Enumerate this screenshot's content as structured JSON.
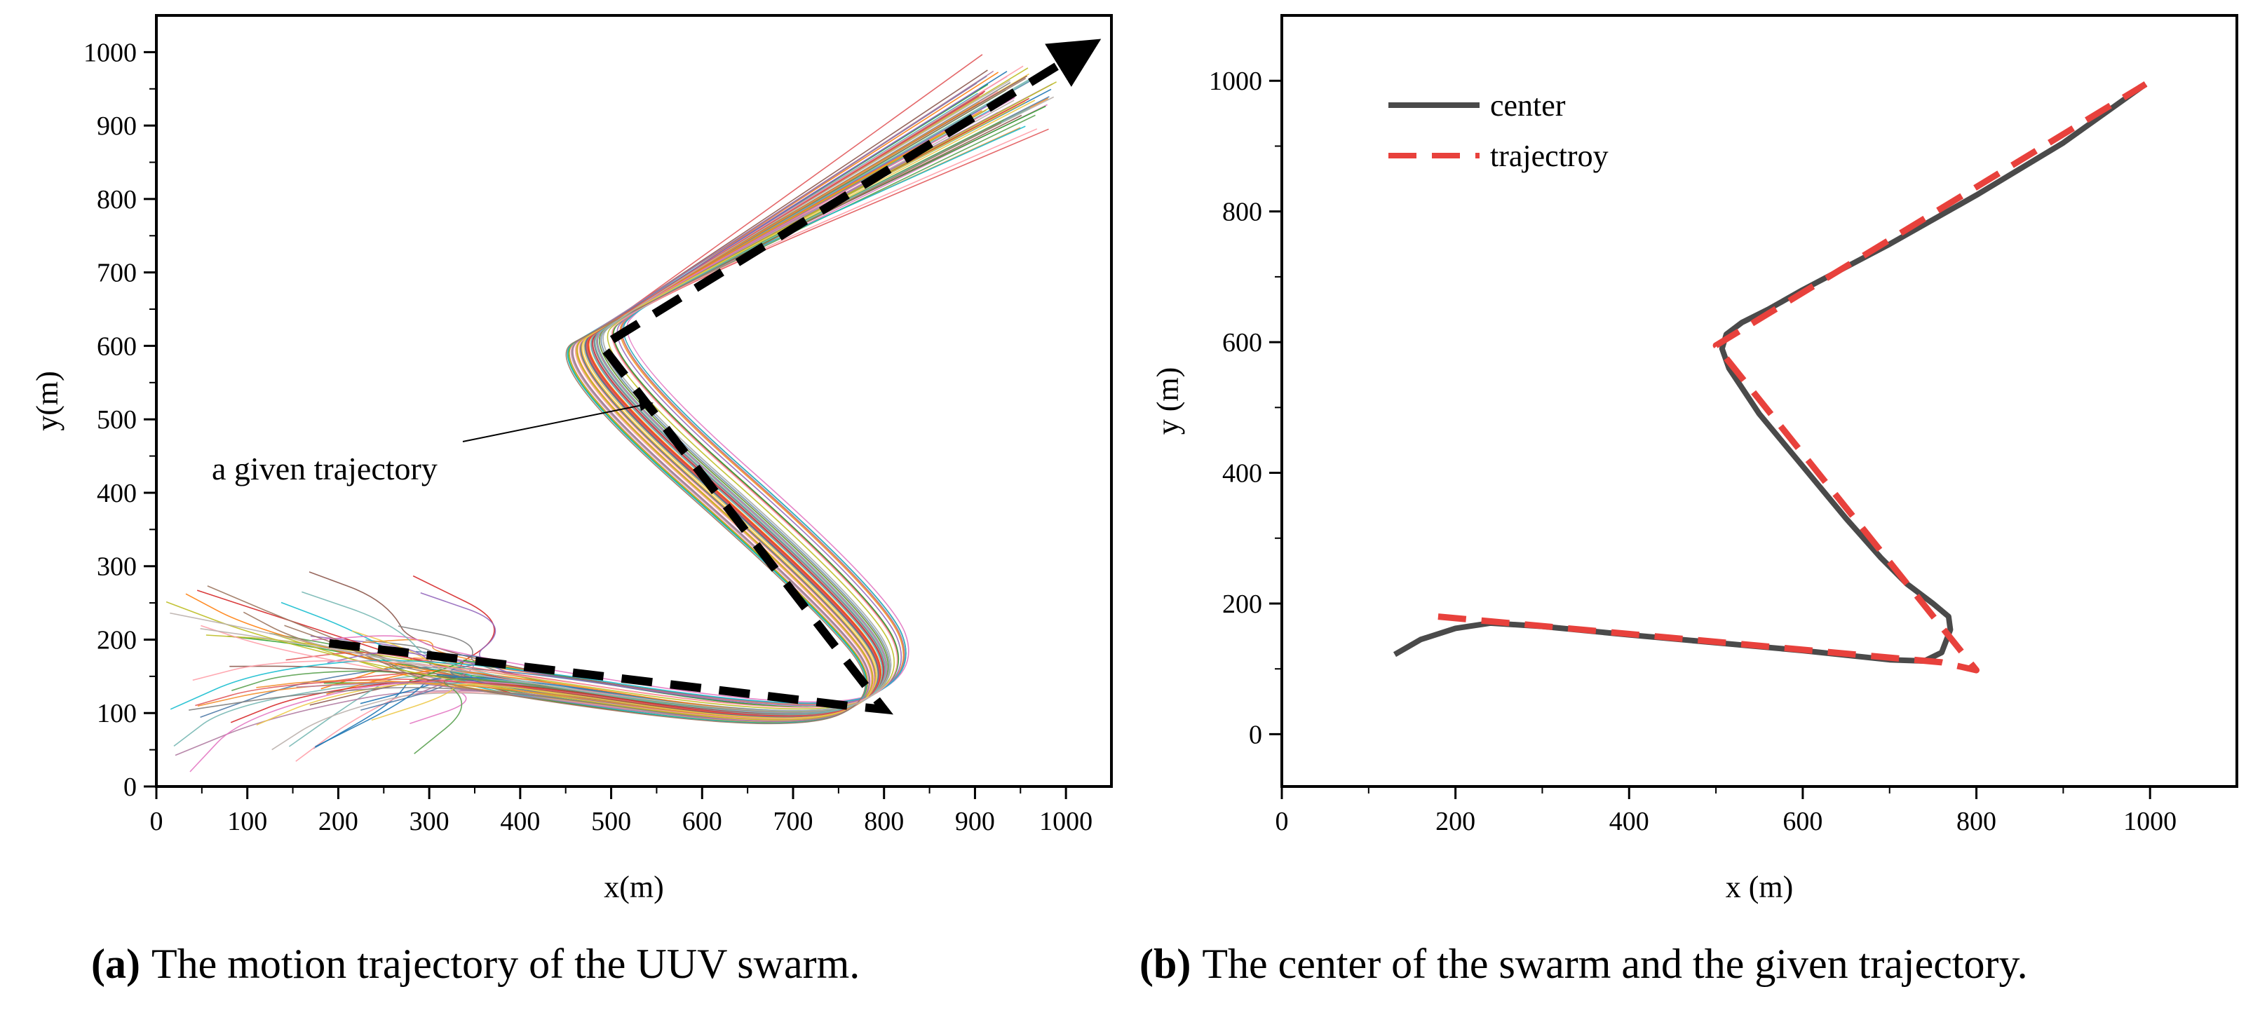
{
  "chart_data": [
    {
      "id": "a",
      "type": "line",
      "xlabel": "x(m)",
      "ylabel": "y(m)",
      "xlim": [
        0,
        1050
      ],
      "ylim": [
        0,
        1050
      ],
      "xticks": [
        0,
        100,
        200,
        300,
        400,
        500,
        600,
        700,
        800,
        900,
        1000
      ],
      "yticks": [
        0,
        100,
        200,
        300,
        400,
        500,
        600,
        700,
        800,
        900,
        1000
      ],
      "annotation": "a given trajectory",
      "given_trajectory": {
        "name": "a given trajectory",
        "x": [
          190,
          760,
          800,
          490,
          1015
        ],
        "y": [
          195,
          110,
          105,
          600,
          1000
        ]
      },
      "swarm_member_count": 60,
      "swarm_start_region": {
        "x": [
          10,
          300
        ],
        "y": [
          20,
          295
        ]
      },
      "swarm_end_region": {
        "x": [
          900,
          990
        ],
        "y": [
          910,
          1000
        ]
      }
    },
    {
      "id": "b",
      "type": "line",
      "xlabel": "x (m)",
      "ylabel": "y (m)",
      "xlim": [
        0,
        1100
      ],
      "ylim": [
        -80,
        1100
      ],
      "xticks": [
        0,
        200,
        400,
        600,
        800,
        1000
      ],
      "yticks": [
        0,
        200,
        400,
        600,
        800,
        1000
      ],
      "legend_position": "top-left",
      "series": [
        {
          "name": "center",
          "color": "#4a4a4a",
          "style": "solid",
          "x": [
            130,
            160,
            200,
            240,
            300,
            400,
            500,
            600,
            700,
            740,
            760,
            770,
            768,
            750,
            720,
            690,
            650,
            600,
            550,
            515,
            507,
            512,
            530,
            560,
            600,
            700,
            800,
            900,
            995
          ],
          "y": [
            122,
            145,
            162,
            170,
            165,
            152,
            140,
            128,
            114,
            112,
            125,
            160,
            180,
            200,
            230,
            270,
            330,
            410,
            490,
            560,
            590,
            612,
            630,
            650,
            680,
            750,
            825,
            905,
            995
          ]
        },
        {
          "name": "trajectroy",
          "color": "#e8413c",
          "style": "dashed",
          "x": [
            180,
            760,
            800,
            500,
            995
          ],
          "y": [
            180,
            110,
            98,
            595,
            995
          ]
        }
      ]
    }
  ],
  "captions": [
    {
      "id": "(a)",
      "text": "The motion trajectory of the UUV swarm."
    },
    {
      "id": "(b)",
      "text": "The center of the swarm and the given trajectory."
    }
  ]
}
